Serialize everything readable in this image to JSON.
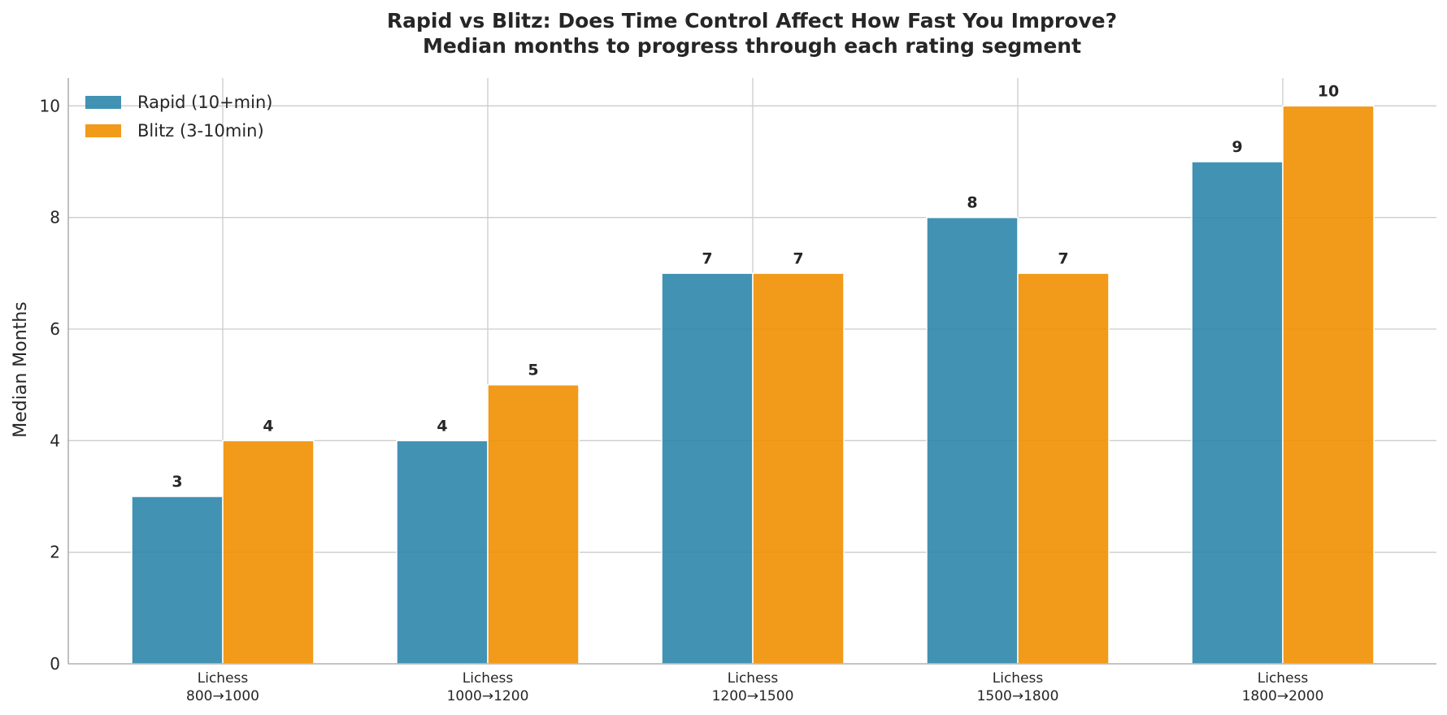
{
  "chart_data": {
    "type": "bar",
    "title": "Rapid vs Blitz: Does Time Control Affect How Fast You Improve?",
    "subtitle": "Median months to progress through each rating segment",
    "xlabel": "",
    "ylabel": "Median Months",
    "ylim": [
      0,
      10.5
    ],
    "yticks": [
      0,
      2,
      4,
      6,
      8,
      10
    ],
    "categories": [
      [
        "Lichess",
        "800→1000"
      ],
      [
        "Lichess",
        "1000→1200"
      ],
      [
        "Lichess",
        "1200→1500"
      ],
      [
        "Lichess",
        "1500→1800"
      ],
      [
        "Lichess",
        "1800→2000"
      ]
    ],
    "series": [
      {
        "name": "Rapid (10+min)",
        "color": "#2e86ab",
        "values": [
          3,
          4,
          7,
          8,
          9
        ]
      },
      {
        "name": "Blitz (3-10min)",
        "color": "#f18f01",
        "values": [
          4,
          5,
          7,
          7,
          10
        ]
      }
    ],
    "grid": true,
    "legend_position": "top-left",
    "data_labels": true
  }
}
